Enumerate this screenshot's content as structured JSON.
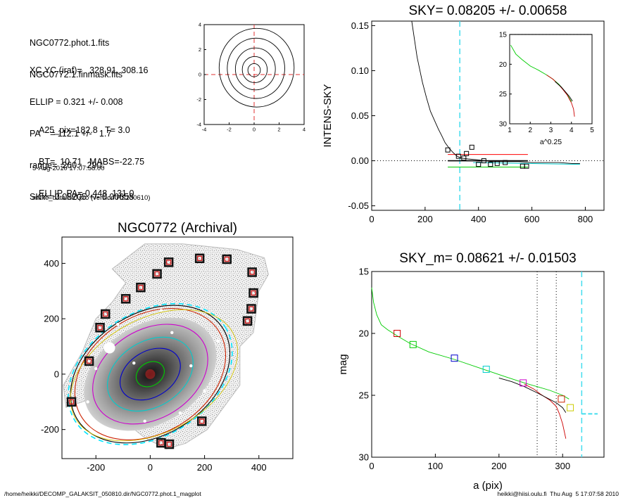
{
  "info": {
    "files": [
      "NGC0772.phot.1.fits",
      "NGC0772.1.finmask.fits"
    ],
    "params": [
      "XC,YC (iraf)=   328.91, 308.16",
      "ELLIP = 0.321 +/- 0.008",
      "PA    = 112.1 +/-   1.7",
      "range=  260.-  290.",
      "SKY= 0.08205 +/- 0.00658"
    ],
    "results": [
      "A25_pix=182.8   T= 3.0",
      "BT=  10.71   MABS=-22.75",
      "ELLIP, PA= 0.448  131.0"
    ],
    "date": "5-Aug-2010 17:07:58.00",
    "program": "make_datalist0.pro (version HS230610)"
  },
  "footer": {
    "left": "/home/heikki/DECOMP_GALAKSIT_050810.dir/NGC0772.phot.1_magplot",
    "right": "heikki@hiisi.oulu.fi  Thu Aug  5 17:07:58 2010"
  },
  "chart_data": [
    {
      "id": "center-contour",
      "type": "contour",
      "xlim": [
        -4,
        4
      ],
      "ylim": [
        -4,
        4
      ],
      "xticks": [
        "-4",
        "-2",
        "0",
        "2",
        "4"
      ],
      "yticks": [
        "4",
        "2",
        "0",
        "-2",
        "-4"
      ],
      "center": [
        0,
        0
      ],
      "contour_radii": [
        0.5,
        1.0,
        1.6,
        2.3,
        3.0
      ]
    },
    {
      "id": "sky-profile",
      "type": "line",
      "title": "SKY= 0.08205 +/- 0.00658",
      "ylabel": "INTENS-SKY",
      "xlim": [
        0,
        870
      ],
      "ylim": [
        -0.055,
        0.155
      ],
      "xticks": [
        "0",
        "200",
        "400",
        "600",
        "800"
      ],
      "yticks": [
        "0.15",
        "0.10",
        "0.05",
        "0.00",
        "-0.05"
      ],
      "sky_radius": 330,
      "profile": {
        "x": [
          150,
          170,
          190,
          205,
          220,
          235,
          250,
          262,
          275,
          290,
          305,
          320,
          335,
          360,
          400,
          450,
          500,
          550,
          600,
          650,
          700,
          750,
          780
        ],
        "y": [
          0.155,
          0.115,
          0.087,
          0.07,
          0.055,
          0.045,
          0.035,
          0.028,
          0.02,
          0.014,
          0.009,
          0.005,
          0.003,
          0.002,
          0.001,
          -0.001,
          -0.001,
          -0.001,
          -0.002,
          -0.002,
          -0.002,
          -0.003,
          -0.003
        ]
      },
      "squares": [
        {
          "x": 285,
          "y": 0.012
        },
        {
          "x": 325,
          "y": 0.005
        },
        {
          "x": 345,
          "y": 0.003
        },
        {
          "x": 355,
          "y": 0.008
        },
        {
          "x": 375,
          "y": 0.015
        },
        {
          "x": 400,
          "y": -0.004
        },
        {
          "x": 420,
          "y": 0.0
        },
        {
          "x": 445,
          "y": -0.004
        },
        {
          "x": 470,
          "y": -0.003
        },
        {
          "x": 500,
          "y": -0.002
        },
        {
          "x": 565,
          "y": -0.006
        },
        {
          "x": 580,
          "y": -0.006
        }
      ],
      "sky_levels": [
        {
          "color": "#ff0000",
          "y": 0.007
        },
        {
          "color": "#000000",
          "y": 0.0
        },
        {
          "color": "#00cc00",
          "y": -0.007
        }
      ],
      "inset": {
        "xlabel": "a^0.25",
        "xlim": [
          1,
          5
        ],
        "ylim": [
          15,
          30
        ],
        "xticks": [
          "1",
          "2",
          "3",
          "4",
          "5"
        ],
        "yticks": [
          "15",
          "20",
          "25",
          "30"
        ],
        "series": [
          {
            "color": "#00cc00",
            "x": [
              1.05,
              1.3,
              1.6,
              2.0,
              2.4,
              2.8,
              3.1,
              3.4,
              3.6,
              3.8,
              4.0
            ],
            "y": [
              16.8,
              18.3,
              19.2,
              20.3,
              21.0,
              21.8,
              22.5,
              23.4,
              24.2,
              25.1,
              26.3
            ]
          },
          {
            "color": "#cc0000",
            "x": [
              2.8,
              3.1,
              3.4,
              3.6,
              3.8,
              4.0,
              4.1,
              4.15
            ],
            "y": [
              21.8,
              22.5,
              23.5,
              24.3,
              25.2,
              26.5,
              27.5,
              28.8
            ]
          },
          {
            "color": "#000000",
            "x": [
              3.2,
              3.5,
              3.7,
              3.9,
              4.05
            ],
            "y": [
              22.9,
              23.8,
              24.6,
              25.4,
              26.2
            ]
          }
        ]
      }
    },
    {
      "id": "galaxy-image",
      "type": "image",
      "title": "NGC0772 (Archival)",
      "xlim": [
        -325,
        525
      ],
      "ylim": [
        -305,
        495
      ],
      "xticks": [
        "-200",
        "0",
        "200",
        "400"
      ],
      "yticks": [
        "400",
        "200",
        "0",
        "-200"
      ],
      "star_boxes": [
        {
          "x": 182,
          "y": 418
        },
        {
          "x": 282,
          "y": 415
        },
        {
          "x": 68,
          "y": 404
        },
        {
          "x": 25,
          "y": 362
        },
        {
          "x": -35,
          "y": 313
        },
        {
          "x": -90,
          "y": 272
        },
        {
          "x": -165,
          "y": 217
        },
        {
          "x": -185,
          "y": 168
        },
        {
          "x": -225,
          "y": 47
        },
        {
          "x": -290,
          "y": -100
        },
        {
          "x": 375,
          "y": 368
        },
        {
          "x": 380,
          "y": 293
        },
        {
          "x": 372,
          "y": 236
        },
        {
          "x": 358,
          "y": 192
        },
        {
          "x": 190,
          "y": -170
        },
        {
          "x": 40,
          "y": -248
        },
        {
          "x": 70,
          "y": -253
        }
      ],
      "isophotes": [
        {
          "color": "#00cc00",
          "a": 55,
          "b": 42
        },
        {
          "color": "#0000cc",
          "a": 120,
          "b": 82
        },
        {
          "color": "#00cccc",
          "a": 170,
          "b": 118
        },
        {
          "color": "#cc00cc",
          "a": 228,
          "b": 160
        },
        {
          "color": "#cc2200",
          "a": 298,
          "b": 212
        },
        {
          "color": "#000000",
          "a": 316,
          "b": 220
        },
        {
          "color": "#00e5ff",
          "a": 326,
          "b": 224
        }
      ]
    },
    {
      "id": "mag-profile",
      "type": "line",
      "title": "SKY_m=  0.08621 +/- 0.01503",
      "xlabel": "a (pix)",
      "ylabel": "mag",
      "xlim": [
        0,
        365
      ],
      "ylim": [
        15,
        30
      ],
      "xticks": [
        "0",
        "100",
        "200",
        "300"
      ],
      "yticks": [
        "15",
        "20",
        "25",
        "30"
      ],
      "range_lines": [
        260,
        290
      ],
      "sky_radius": 330,
      "series": [
        {
          "color": "#00cc00",
          "x": [
            0,
            3,
            8,
            15,
            25,
            40,
            60,
            90,
            130,
            170,
            210,
            240,
            260,
            280,
            300,
            310
          ],
          "y": [
            16.3,
            17.5,
            18.5,
            19.3,
            19.7,
            20.2,
            20.8,
            21.5,
            22.1,
            22.8,
            23.5,
            24.0,
            24.3,
            24.6,
            25.0,
            25.3
          ]
        },
        {
          "color": "#cc0000",
          "x": [
            240,
            255,
            265,
            280,
            290,
            295,
            300,
            305
          ],
          "y": [
            24.1,
            24.5,
            24.9,
            25.4,
            25.9,
            26.5,
            27.3,
            28.5
          ]
        },
        {
          "color": "#000000",
          "x": [
            200,
            220,
            240,
            260,
            275,
            290,
            300,
            305
          ],
          "y": [
            23.6,
            23.9,
            24.3,
            24.8,
            25.2,
            25.6,
            26.0,
            26.4
          ]
        }
      ],
      "squares": [
        {
          "x": 40,
          "y": 20.0,
          "color": "#cc0000"
        },
        {
          "x": 65,
          "y": 20.9,
          "color": "#00cc00"
        },
        {
          "x": 130,
          "y": 22.0,
          "color": "#0000cc"
        },
        {
          "x": 180,
          "y": 22.9,
          "color": "#00cccc"
        },
        {
          "x": 238,
          "y": 24.0,
          "color": "#cc00cc"
        },
        {
          "x": 298,
          "y": 25.3,
          "color": "#cc2200"
        },
        {
          "x": 312,
          "y": 26.0,
          "color": "#cccc00"
        }
      ],
      "sky_mag": 26.5
    }
  ]
}
